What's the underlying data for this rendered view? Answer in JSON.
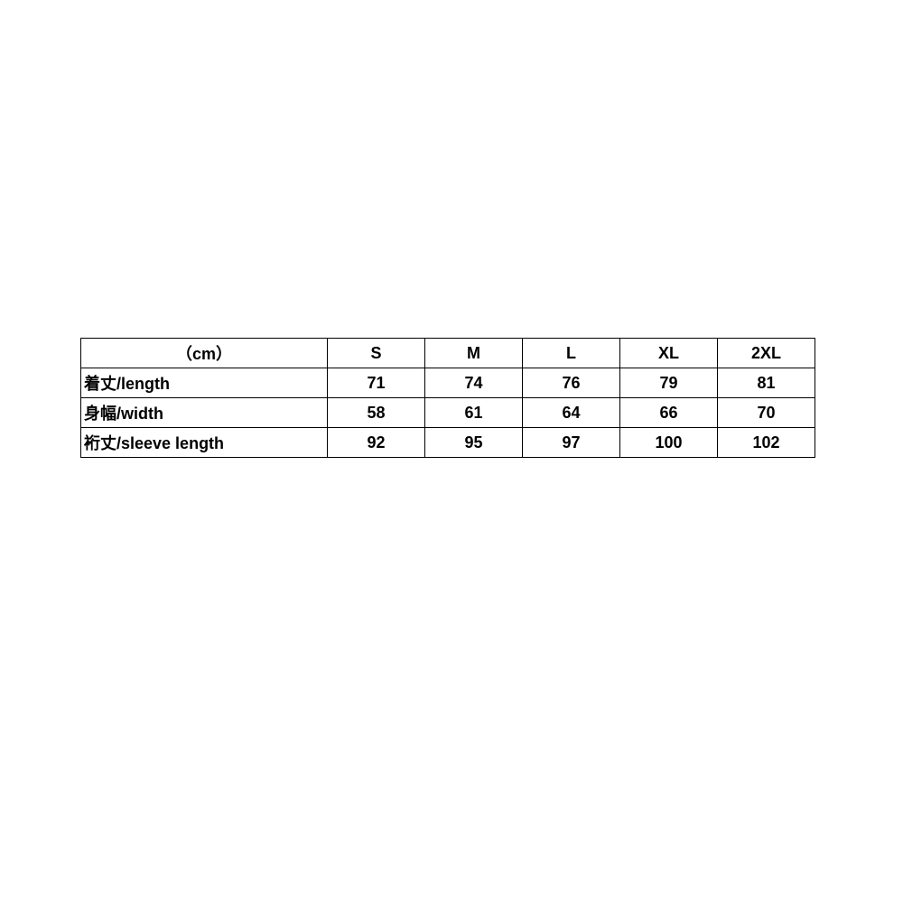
{
  "header": {
    "unit": "（cm）",
    "sizes": [
      "S",
      "M",
      "L",
      "XL",
      "2XL"
    ]
  },
  "rows": [
    {
      "label": "着丈/length",
      "values": [
        "71",
        "74",
        "76",
        "79",
        "81"
      ]
    },
    {
      "label": "身幅/width",
      "values": [
        "58",
        "61",
        "64",
        "66",
        "70"
      ]
    },
    {
      "label": "裄丈/sleeve length",
      "values": [
        "92",
        "95",
        "97",
        "100",
        "102"
      ]
    }
  ]
}
